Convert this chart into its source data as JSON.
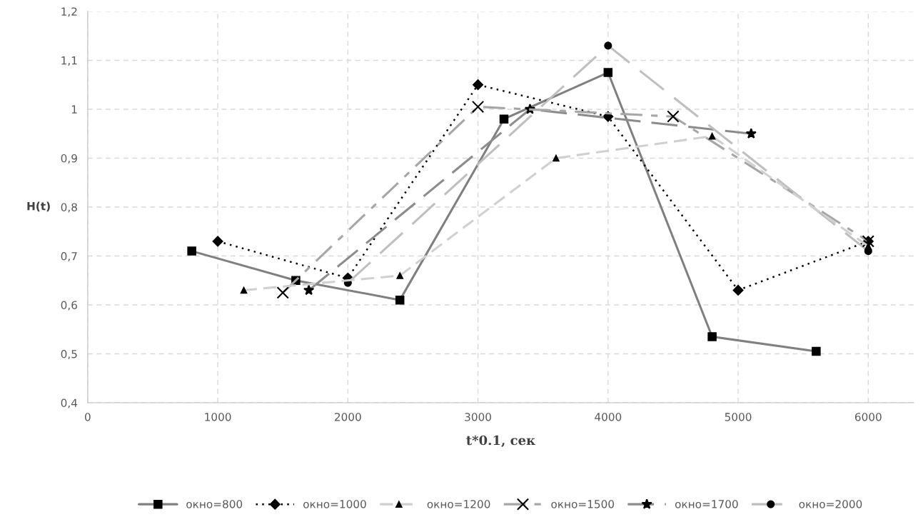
{
  "chart_data": {
    "type": "line",
    "xlabel": "t*0.1, сек",
    "ylabel": "H(t)",
    "xlim": [
      0,
      6350
    ],
    "xticks": [
      0,
      1000,
      2000,
      3000,
      4000,
      5000,
      6000
    ],
    "ylim": [
      0.4,
      1.2
    ],
    "yticks": [
      {
        "value": 0.4,
        "label": "0,4"
      },
      {
        "value": 0.5,
        "label": "0,5"
      },
      {
        "value": 0.6,
        "label": "0,6"
      },
      {
        "value": 0.7,
        "label": "0,7"
      },
      {
        "value": 0.8,
        "label": "0,8"
      },
      {
        "value": 0.9,
        "label": "0,9"
      },
      1,
      {
        "value": 1.1,
        "label": "1,1"
      },
      {
        "value": 1.2,
        "label": "1,2"
      }
    ],
    "grid": true,
    "legend": "bottom",
    "series": [
      {
        "name": "окно=800",
        "color": "#808080",
        "line_style": "solid",
        "marker": "square",
        "x": [
          800,
          1600,
          2400,
          3200,
          4000,
          4800,
          5600
        ],
        "values": [
          0.71,
          0.65,
          0.61,
          0.98,
          1.075,
          0.535,
          0.505
        ]
      },
      {
        "name": "окно=1000",
        "color": "#000000",
        "line_style": "dotted",
        "marker": "diamond",
        "x": [
          1000,
          2000,
          3000,
          4000,
          5000,
          6000
        ],
        "values": [
          0.73,
          0.655,
          1.05,
          0.985,
          0.63,
          0.73
        ]
      },
      {
        "name": "окно=1200",
        "color": "#d0d0d0",
        "line_style": "dashed",
        "marker": "triangle",
        "x": [
          1200,
          2400,
          3600,
          4800,
          6000
        ],
        "values": [
          0.63,
          0.66,
          0.9,
          0.945,
          0.72
        ]
      },
      {
        "name": "окно=1500",
        "color": "#a6a6a6",
        "line_style": "dashed",
        "marker": "cross",
        "x": [
          1500,
          3000,
          4500,
          6000
        ],
        "values": [
          0.625,
          1.005,
          0.985,
          0.73
        ]
      },
      {
        "name": "окно=1700",
        "color": "#8c8c8c",
        "line_style": "dashed",
        "marker": "star",
        "x": [
          1700,
          3400,
          5100
        ],
        "values": [
          0.63,
          1.0,
          0.95
        ]
      },
      {
        "name": "окно=2000",
        "color": "#bfbfbf",
        "line_style": "dashed",
        "marker": "circle",
        "x": [
          2000,
          4000,
          6000
        ],
        "values": [
          0.645,
          1.13,
          0.71
        ]
      }
    ]
  }
}
